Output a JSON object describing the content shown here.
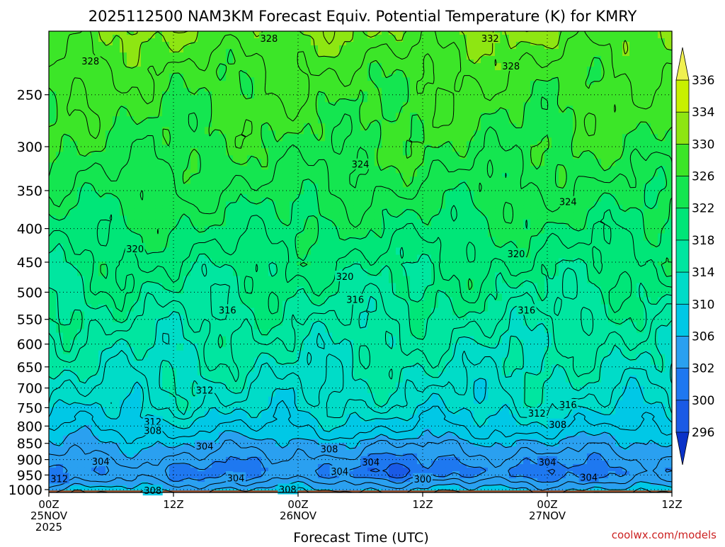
{
  "chart_data": {
    "type": "heatmap",
    "title": "2025112500 NAM3KM Forecast Equiv. Potential Temperature (K) for KMRY",
    "xlabel": "Forecast Time (UTC)",
    "ylabel": "",
    "x_ticks": [
      {
        "hours": 0,
        "lines": [
          "00Z",
          "25NOV",
          "2025"
        ]
      },
      {
        "hours": 12,
        "lines": [
          "12Z"
        ]
      },
      {
        "hours": 24,
        "lines": [
          "00Z",
          "26NOV"
        ]
      },
      {
        "hours": 36,
        "lines": [
          "12Z"
        ]
      },
      {
        "hours": 48,
        "lines": [
          "00Z",
          "27NOV"
        ]
      },
      {
        "hours": 60,
        "lines": [
          "12Z"
        ]
      }
    ],
    "xlim_hours": [
      0,
      60
    ],
    "y_ticks": [
      250,
      300,
      350,
      400,
      450,
      500,
      550,
      600,
      650,
      700,
      750,
      800,
      850,
      900,
      950,
      1000
    ],
    "ylim": [
      1010,
      200
    ],
    "y_scale": "log",
    "grid": "dotted",
    "colorbar": {
      "unit": "K",
      "levels": [
        296,
        300,
        302,
        306,
        310,
        314,
        318,
        322,
        326,
        330,
        334,
        336
      ],
      "labels": [
        336,
        334,
        330,
        326,
        322,
        318,
        314,
        310,
        306,
        302,
        300,
        296
      ],
      "colors": [
        "#0a32c8",
        "#1a5ae6",
        "#1e78f0",
        "#2aa0f0",
        "#00c8e6",
        "#00dcc8",
        "#00e6a0",
        "#00e678",
        "#14e650",
        "#3ce628",
        "#8ee612",
        "#c8f000",
        "#f0f050"
      ],
      "placement": "right"
    },
    "contour_labels": [
      {
        "value": "328",
        "hours": 21.2,
        "p": 205
      },
      {
        "value": "332",
        "hours": 42.5,
        "p": 205
      },
      {
        "value": "328",
        "hours": 4.0,
        "p": 222
      },
      {
        "value": "328",
        "hours": 44.5,
        "p": 226
      },
      {
        "value": "324",
        "hours": 30.0,
        "p": 319
      },
      {
        "value": "324",
        "hours": 50.0,
        "p": 364
      },
      {
        "value": "320",
        "hours": 8.3,
        "p": 429
      },
      {
        "value": "320",
        "hours": 28.5,
        "p": 473
      },
      {
        "value": "320",
        "hours": 45.0,
        "p": 437
      },
      {
        "value": "316",
        "hours": 17.2,
        "p": 532
      },
      {
        "value": "316",
        "hours": 29.5,
        "p": 513
      },
      {
        "value": "316",
        "hours": 46.0,
        "p": 532
      },
      {
        "value": "312",
        "hours": 15.0,
        "p": 705
      },
      {
        "value": "312",
        "hours": 10.0,
        "p": 788
      },
      {
        "value": "308",
        "hours": 10.0,
        "p": 812
      },
      {
        "value": "304",
        "hours": 15.0,
        "p": 858
      },
      {
        "value": "308",
        "hours": 27.0,
        "p": 867
      },
      {
        "value": "304",
        "hours": 5.0,
        "p": 905
      },
      {
        "value": "304",
        "hours": 31.0,
        "p": 907
      },
      {
        "value": "304",
        "hours": 48.0,
        "p": 907
      },
      {
        "value": "304",
        "hours": 28.0,
        "p": 937
      },
      {
        "value": "304",
        "hours": 18.0,
        "p": 960
      },
      {
        "value": "304",
        "hours": 52.0,
        "p": 957
      },
      {
        "value": "300",
        "hours": 36.0,
        "p": 963
      },
      {
        "value": "312",
        "hours": 1.0,
        "p": 962
      },
      {
        "value": "308",
        "hours": 10.0,
        "p": 1003
      },
      {
        "value": "308",
        "hours": 23.0,
        "p": 999
      },
      {
        "value": "316",
        "hours": 50.0,
        "p": 742
      },
      {
        "value": "312",
        "hours": 47.0,
        "p": 764
      },
      {
        "value": "308",
        "hours": 49.0,
        "p": 795
      }
    ],
    "profile": [
      {
        "p": 200,
        "theta": 330
      },
      {
        "p": 230,
        "theta": 327.5
      },
      {
        "p": 300,
        "theta": 325.5
      },
      {
        "p": 350,
        "theta": 323.5
      },
      {
        "p": 400,
        "theta": 321.5
      },
      {
        "p": 450,
        "theta": 319.5
      },
      {
        "p": 500,
        "theta": 318
      },
      {
        "p": 560,
        "theta": 316
      },
      {
        "p": 620,
        "theta": 314.5
      },
      {
        "p": 680,
        "theta": 313
      },
      {
        "p": 740,
        "theta": 311.5
      },
      {
        "p": 790,
        "theta": 309
      },
      {
        "p": 830,
        "theta": 307
      },
      {
        "p": 870,
        "theta": 305
      },
      {
        "p": 900,
        "theta": 303.5
      },
      {
        "p": 935,
        "theta": 302
      },
      {
        "p": 965,
        "theta": 303
      },
      {
        "p": 985,
        "theta": 305
      },
      {
        "p": 1010,
        "theta": 307
      }
    ],
    "ground_color": "#a0522d"
  },
  "footer": {
    "credit": "coolwx.com/models"
  }
}
